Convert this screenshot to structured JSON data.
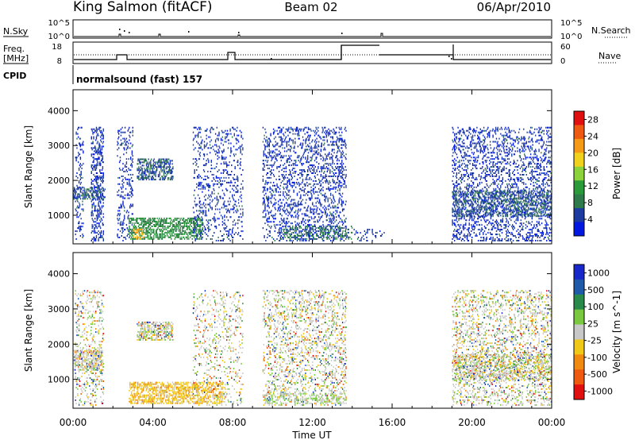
{
  "header": {
    "station": "King Salmon (fitACF)",
    "beam": "Beam 02",
    "date": "06/Apr/2010"
  },
  "top_panels": {
    "nsky": {
      "label": "N.Sky",
      "tick_top": "10^5",
      "tick_bottom": "10^0"
    },
    "nsearch": {
      "label": "N.Search",
      "tick_top": "10^5",
      "tick_bottom": "10^0"
    },
    "freq": {
      "label_line1": "Freq.",
      "label_line2": "[MHz]",
      "tick_top": "18",
      "tick_bottom": "8"
    },
    "nave": {
      "label": "Nave",
      "tick_top": "60",
      "tick_bottom": "0"
    },
    "cpid": {
      "label": "CPID",
      "program": "normalsound (fast) 157"
    }
  },
  "colors": {
    "power_scale": [
      "#0018e0",
      "#1c3aa0",
      "#2f7a4a",
      "#2a9a3a",
      "#8cd23a",
      "#f0d21e",
      "#f59a16",
      "#ef5a12",
      "#e01010"
    ],
    "velocity_scale": [
      "#1828c8",
      "#1e5aa8",
      "#2a8a4a",
      "#7ac840",
      "#c8c8c8",
      "#f0c818",
      "#f08a10",
      "#ee5a10",
      "#e01010"
    ]
  },
  "chart_data": [
    {
      "type": "heatmap",
      "title": "Power",
      "xlabel": "Time UT",
      "ylabel": "Slant Range [km]",
      "xlim": [
        "00:00",
        "24:00"
      ],
      "ylim": [
        180,
        4600
      ],
      "x_ticks": [
        "00:00",
        "04:00",
        "08:00",
        "12:00",
        "16:00",
        "20:00",
        "00:00"
      ],
      "y_ticks": [
        "1000",
        "2000",
        "3000",
        "4000"
      ],
      "colorbar": {
        "label": "Power [dB]",
        "ticks": [
          "4",
          "8",
          "12",
          "16",
          "20",
          "24",
          "28"
        ],
        "range": [
          0,
          30
        ]
      },
      "regions": [
        {
          "t": [
            0.1,
            0.5
          ],
          "r": [
            250,
            3500
          ],
          "value": 4,
          "density": 0.25
        },
        {
          "t": [
            0.9,
            1.5
          ],
          "r": [
            250,
            3500
          ],
          "value": 4,
          "density": 0.5
        },
        {
          "t": [
            0.0,
            1.6
          ],
          "r": [
            1450,
            1800
          ],
          "value": 6,
          "density": 0.7
        },
        {
          "t": [
            2.2,
            3.0
          ],
          "r": [
            250,
            3500
          ],
          "value": 4,
          "density": 0.3
        },
        {
          "t": [
            3.2,
            5.0
          ],
          "r": [
            2000,
            2600
          ],
          "value": 6,
          "density": 0.8
        },
        {
          "t": [
            2.8,
            6.5
          ],
          "r": [
            300,
            900
          ],
          "value": 10,
          "density": 0.75
        },
        {
          "t": [
            3.0,
            3.5
          ],
          "r": [
            300,
            600
          ],
          "value": 20,
          "density": 0.8
        },
        {
          "t": [
            6.0,
            8.5
          ],
          "r": [
            250,
            3500
          ],
          "value": 4,
          "density": 0.25
        },
        {
          "t": [
            9.5,
            13.7
          ],
          "r": [
            250,
            3500
          ],
          "value": 4,
          "density": 0.35
        },
        {
          "t": [
            10.5,
            14.0
          ],
          "r": [
            300,
            700
          ],
          "value": 8,
          "density": 0.4
        },
        {
          "t": [
            14.0,
            15.8
          ],
          "r": [
            250,
            600
          ],
          "value": 4,
          "density": 0.2
        },
        {
          "t": [
            19.0,
            24.0
          ],
          "r": [
            250,
            3500
          ],
          "value": 4,
          "density": 0.35
        },
        {
          "t": [
            19.0,
            24.0
          ],
          "r": [
            950,
            1700
          ],
          "value": 6,
          "density": 0.55
        }
      ]
    },
    {
      "type": "heatmap",
      "title": "Velocity",
      "xlabel": "Time UT",
      "ylabel": "Slant Range [km]",
      "xlim": [
        "00:00",
        "24:00"
      ],
      "ylim": [
        180,
        4600
      ],
      "x_ticks": [
        "00:00",
        "04:00",
        "08:00",
        "12:00",
        "16:00",
        "20:00",
        "00:00"
      ],
      "y_ticks": [
        "1000",
        "2000",
        "3000",
        "4000"
      ],
      "colorbar": {
        "label": "Velocity [m s^-1]",
        "ticks": [
          "1000",
          "500",
          "100",
          "25",
          "-25",
          "-100",
          "-500",
          "-1000"
        ],
        "range": [
          -1200,
          1200
        ]
      },
      "regions": [
        {
          "t": [
            0.1,
            1.5
          ],
          "r": [
            250,
            3500
          ],
          "value": 0,
          "density": 0.3
        },
        {
          "t": [
            0.0,
            1.5
          ],
          "r": [
            1250,
            1800
          ],
          "value": 0,
          "density": 0.7
        },
        {
          "t": [
            3.2,
            5.0
          ],
          "r": [
            2100,
            2600
          ],
          "value": 0,
          "density": 0.8
        },
        {
          "t": [
            2.8,
            7.5
          ],
          "r": [
            300,
            900
          ],
          "value": -300,
          "density": 0.75
        },
        {
          "t": [
            6.0,
            8.5
          ],
          "r": [
            250,
            3500
          ],
          "value": 0,
          "density": 0.2
        },
        {
          "t": [
            9.5,
            13.7
          ],
          "r": [
            250,
            3500
          ],
          "value": 0,
          "density": 0.35
        },
        {
          "t": [
            9.5,
            13.7
          ],
          "r": [
            300,
            600
          ],
          "value": 150,
          "density": 0.4
        },
        {
          "t": [
            19.0,
            24.0
          ],
          "r": [
            250,
            3500
          ],
          "value": 0,
          "density": 0.35
        },
        {
          "t": [
            19.0,
            24.0
          ],
          "r": [
            950,
            1700
          ],
          "value": 0,
          "density": 0.6
        }
      ]
    }
  ]
}
